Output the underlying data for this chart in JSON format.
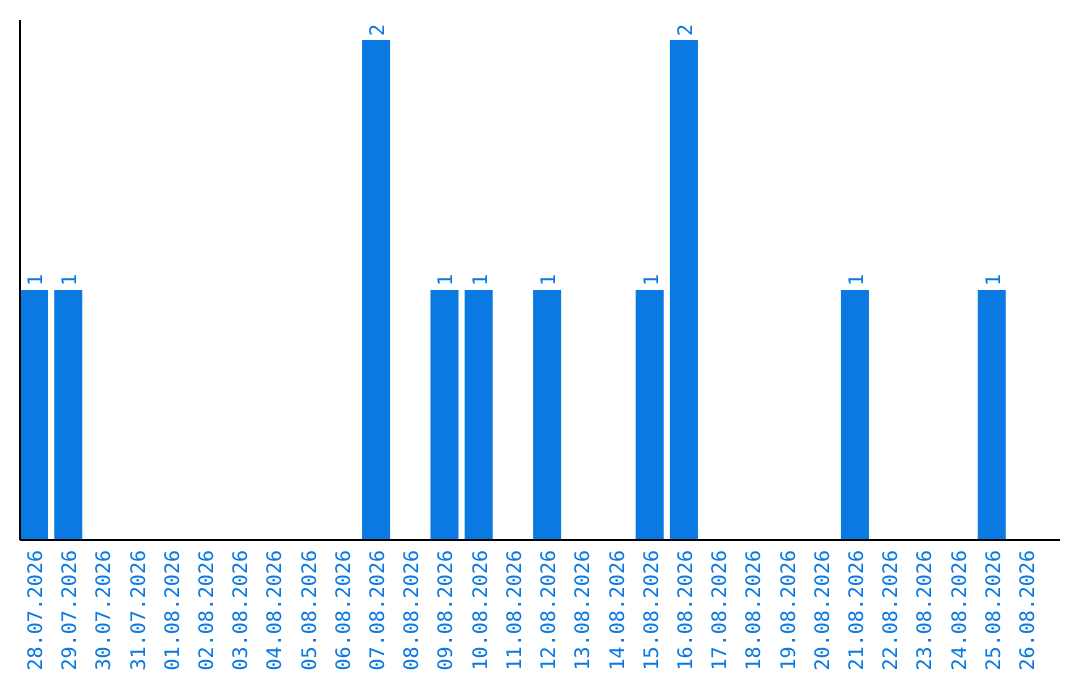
{
  "chart_data": {
    "type": "bar",
    "categories": [
      "28.07.2026",
      "29.07.2026",
      "30.07.2026",
      "31.07.2026",
      "01.08.2026",
      "02.08.2026",
      "03.08.2026",
      "04.08.2026",
      "05.08.2026",
      "06.08.2026",
      "07.08.2026",
      "08.08.2026",
      "09.08.2026",
      "10.08.2026",
      "11.08.2026",
      "12.08.2026",
      "13.08.2026",
      "14.08.2026",
      "15.08.2026",
      "16.08.2026",
      "17.08.2026",
      "18.08.2026",
      "19.08.2026",
      "20.08.2026",
      "21.08.2026",
      "22.08.2026",
      "23.08.2026",
      "24.08.2026",
      "25.08.2026",
      "26.08.2026"
    ],
    "values": [
      1,
      1,
      0,
      0,
      0,
      0,
      0,
      0,
      0,
      0,
      2,
      0,
      1,
      1,
      0,
      1,
      0,
      0,
      1,
      2,
      0,
      0,
      0,
      0,
      1,
      0,
      0,
      0,
      1,
      0
    ],
    "value_labels": [
      "1",
      "1",
      null,
      null,
      null,
      null,
      null,
      null,
      null,
      null,
      "2",
      null,
      "1",
      "1",
      null,
      "1",
      null,
      null,
      "1",
      "2",
      null,
      null,
      null,
      null,
      "1",
      null,
      null,
      null,
      "1",
      null
    ],
    "color": "#0a7ae2",
    "ylim": [
      0,
      2.08
    ],
    "tick_labels": "x"
  }
}
